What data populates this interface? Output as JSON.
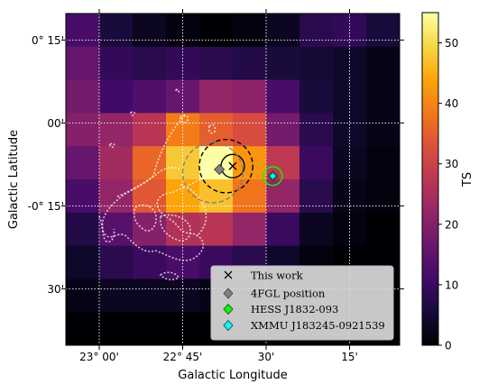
{
  "chart_data": {
    "type": "heatmap",
    "xlabel": "Galactic Longitude",
    "ylabel": "Galactic Latitude",
    "x_tick_labels": [
      "23$^\\circ$00'",
      "22$^\\circ$45'",
      "30'",
      "15'"
    ],
    "x_tick_text": [
      "23° 00'",
      "22° 45'",
      "30'",
      "15'"
    ],
    "x_ticks_deg": [
      23.0,
      22.75,
      22.5,
      22.25
    ],
    "y_tick_text": [
      "0° 15'",
      "00'",
      "-0° 15'",
      "30'"
    ],
    "y_ticks_deg": [
      0.25,
      0.0,
      -0.25,
      -0.5
    ],
    "xlim_deg": [
      23.1,
      22.1
    ],
    "ylim_deg": [
      -0.67,
      0.33
    ],
    "grid": true,
    "colorbar": {
      "label": "TS",
      "min": 0,
      "max": 55,
      "ticks": [
        0,
        10,
        20,
        30,
        40,
        50
      ],
      "tick_text": [
        "0",
        "10",
        "20",
        "30",
        "40",
        "50"
      ],
      "colormap": "inferno"
    },
    "grid_shape": [
      10,
      10
    ],
    "ts_map_rows_top_to_bottom": [
      [
        12,
        6,
        3,
        1,
        0,
        1,
        3,
        8,
        9,
        6
      ],
      [
        16,
        9,
        8,
        9,
        8,
        7,
        6,
        5,
        4,
        2
      ],
      [
        18,
        11,
        13,
        16,
        22,
        21,
        12,
        6,
        4,
        2
      ],
      [
        20,
        22,
        27,
        39,
        35,
        32,
        18,
        8,
        4,
        2
      ],
      [
        16,
        24,
        36,
        48,
        55,
        42,
        28,
        10,
        3,
        1
      ],
      [
        12,
        22,
        34,
        44,
        47,
        38,
        22,
        8,
        2,
        1
      ],
      [
        7,
        14,
        20,
        26,
        27,
        22,
        10,
        3,
        1,
        0
      ],
      [
        4,
        8,
        10,
        12,
        10,
        8,
        4,
        1,
        0,
        0
      ],
      [
        2,
        3,
        3,
        3,
        2,
        2,
        1,
        0,
        0,
        0
      ],
      [
        0,
        0,
        0,
        0,
        0,
        0,
        0,
        0,
        0,
        0
      ]
    ],
    "markers": [
      {
        "name": "This work",
        "symbol": "x",
        "color": "#000000",
        "l_deg": 22.6,
        "b_deg": -0.13
      },
      {
        "name": "4FGL position",
        "symbol": "diamond",
        "color": "#808080",
        "l_deg": 22.64,
        "b_deg": -0.14
      },
      {
        "name": "HESS J1832-093",
        "symbol": "diamond",
        "color": "#00ff00",
        "l_deg": 22.48,
        "b_deg": -0.16
      },
      {
        "name": "XMMU J183245-0921539",
        "symbol": "diamond",
        "color": "#00ffff",
        "l_deg": 22.48,
        "b_deg": -0.16
      }
    ],
    "contours": [
      {
        "desc": "solid",
        "color": "#000000",
        "l_deg": 22.6,
        "b_deg": -0.13,
        "r_deg": 0.035
      },
      {
        "desc": "dashed",
        "color": "#000000",
        "l_deg": 22.62,
        "b_deg": -0.13,
        "r_deg": 0.08
      },
      {
        "desc": "dashed",
        "color": "#808080",
        "l_deg": 22.66,
        "b_deg": -0.15,
        "r_deg": 0.09
      },
      {
        "desc": "solid",
        "color": "#00ff00",
        "l_deg": 22.48,
        "b_deg": -0.16,
        "r_deg": 0.028
      }
    ],
    "legend": {
      "placement": "lower-right",
      "entries": [
        "This work",
        "4FGL position",
        "HESS J1832-093",
        "XMMU J183245-0921539"
      ]
    },
    "overlay": {
      "desc": "white radio shell contours",
      "color": "#ffffff"
    }
  }
}
